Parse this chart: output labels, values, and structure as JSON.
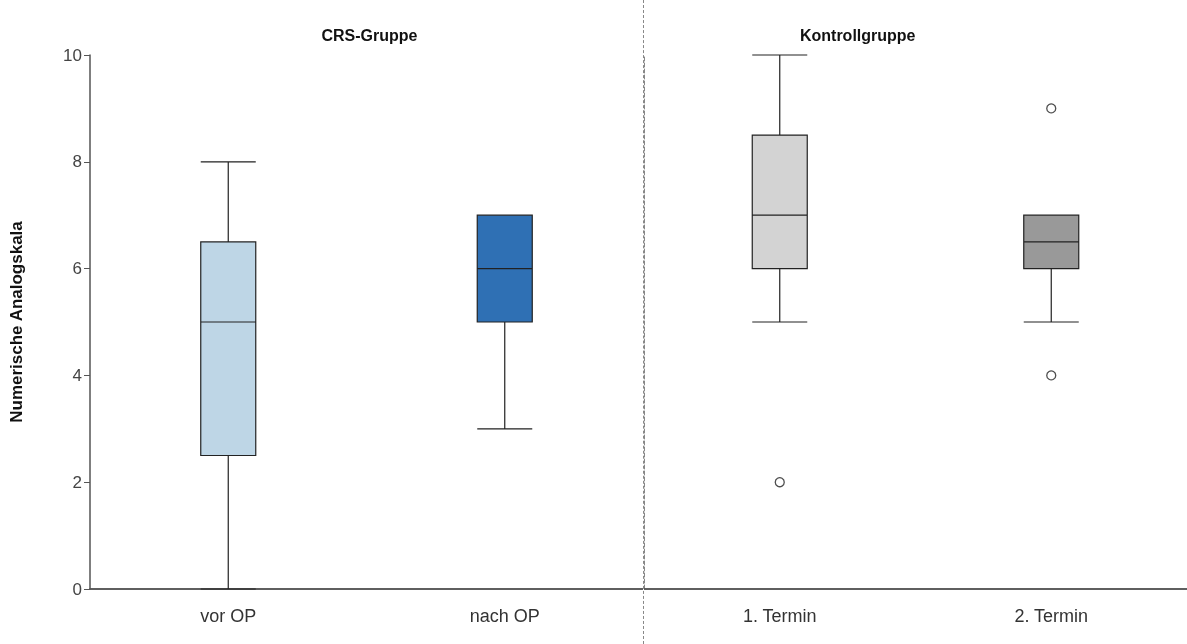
{
  "chart_data": [
    {
      "type": "box",
      "title": "CRS-Gruppe",
      "ylabel": "Numerische Analogskala",
      "categories": [
        "vor OP",
        "nach OP"
      ],
      "colors": [
        "#bed6e6",
        "#2f70b4"
      ],
      "ylim": [
        0,
        10
      ],
      "yticks": [
        0,
        2,
        4,
        6,
        8,
        10
      ],
      "boxes": [
        {
          "low": 0,
          "q1": 2.5,
          "median": 5,
          "q3": 6.5,
          "high": 8
        },
        {
          "low": 3,
          "q1": 5,
          "median": 6,
          "q3": 7,
          "high": 7
        }
      ]
    },
    {
      "type": "box",
      "title": "Kontrollgruppe",
      "categories": [
        "1. Termin",
        "2. Termin"
      ],
      "colors": [
        "#d3d3d3",
        "#999999"
      ],
      "ylim": [
        0,
        10
      ],
      "yticks": [
        0,
        2,
        4,
        6,
        8,
        10
      ],
      "tick_labels": "x",
      "boxes": [
        {
          "low": 5,
          "q1": 6,
          "median": 7,
          "q3": 8.5,
          "high": 10,
          "outliers": [
            2
          ]
        },
        {
          "low": 5,
          "q1": 6,
          "median": 6.5,
          "q3": 7,
          "high": 7,
          "outliers": [
            4,
            9
          ]
        }
      ]
    }
  ]
}
